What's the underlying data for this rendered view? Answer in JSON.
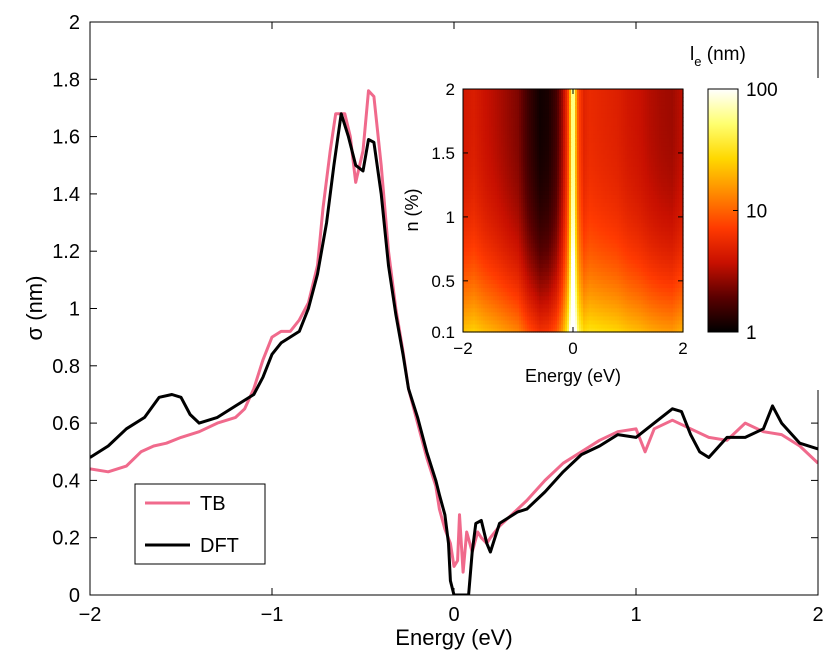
{
  "chart_data": [
    {
      "type": "line",
      "title": "",
      "xlabel": "Energy (eV)",
      "ylabel": "σ (nm)",
      "xlim": [
        -2,
        2
      ],
      "ylim": [
        0,
        2
      ],
      "xticks": [
        -2,
        -1,
        0,
        1,
        2
      ],
      "xtick_labels": [
        "−2",
        "−1",
        "0",
        "1",
        "2"
      ],
      "yticks": [
        0,
        0.2,
        0.4,
        0.6,
        0.8,
        1,
        1.2,
        1.4,
        1.6,
        1.8,
        2
      ],
      "ytick_labels": [
        "0",
        "0.2",
        "0.4",
        "0.6",
        "0.8",
        "1",
        "1.2",
        "1.4",
        "1.6",
        "1.8",
        "2"
      ],
      "grid": false,
      "legend": "bottom-left",
      "series": [
        {
          "name": "TB",
          "color": "#f06a8c",
          "points": [
            [
              -2.0,
              0.44
            ],
            [
              -1.9,
              0.43
            ],
            [
              -1.8,
              0.45
            ],
            [
              -1.72,
              0.5
            ],
            [
              -1.65,
              0.52
            ],
            [
              -1.58,
              0.53
            ],
            [
              -1.5,
              0.55
            ],
            [
              -1.4,
              0.57
            ],
            [
              -1.3,
              0.6
            ],
            [
              -1.2,
              0.62
            ],
            [
              -1.15,
              0.65
            ],
            [
              -1.1,
              0.72
            ],
            [
              -1.05,
              0.82
            ],
            [
              -1.0,
              0.9
            ],
            [
              -0.95,
              0.92
            ],
            [
              -0.9,
              0.92
            ],
            [
              -0.85,
              0.96
            ],
            [
              -0.8,
              1.02
            ],
            [
              -0.75,
              1.15
            ],
            [
              -0.72,
              1.35
            ],
            [
              -0.68,
              1.55
            ],
            [
              -0.65,
              1.68
            ],
            [
              -0.6,
              1.68
            ],
            [
              -0.57,
              1.6
            ],
            [
              -0.54,
              1.44
            ],
            [
              -0.5,
              1.55
            ],
            [
              -0.47,
              1.76
            ],
            [
              -0.44,
              1.74
            ],
            [
              -0.4,
              1.5
            ],
            [
              -0.36,
              1.2
            ],
            [
              -0.32,
              1.0
            ],
            [
              -0.28,
              0.85
            ],
            [
              -0.25,
              0.72
            ],
            [
              -0.2,
              0.6
            ],
            [
              -0.15,
              0.48
            ],
            [
              -0.1,
              0.38
            ],
            [
              -0.08,
              0.3
            ],
            [
              -0.05,
              0.23
            ],
            [
              -0.02,
              0.18
            ],
            [
              0.0,
              0.1
            ],
            [
              0.02,
              0.12
            ],
            [
              0.03,
              0.28
            ],
            [
              0.05,
              0.08
            ],
            [
              0.07,
              0.22
            ],
            [
              0.1,
              0.15
            ],
            [
              0.13,
              0.22
            ],
            [
              0.15,
              0.2
            ],
            [
              0.18,
              0.18
            ],
            [
              0.2,
              0.2
            ],
            [
              0.25,
              0.24
            ],
            [
              0.3,
              0.27
            ],
            [
              0.35,
              0.3
            ],
            [
              0.4,
              0.33
            ],
            [
              0.5,
              0.4
            ],
            [
              0.6,
              0.46
            ],
            [
              0.7,
              0.5
            ],
            [
              0.8,
              0.54
            ],
            [
              0.9,
              0.57
            ],
            [
              1.0,
              0.58
            ],
            [
              1.05,
              0.5
            ],
            [
              1.1,
              0.58
            ],
            [
              1.2,
              0.61
            ],
            [
              1.3,
              0.58
            ],
            [
              1.4,
              0.55
            ],
            [
              1.5,
              0.54
            ],
            [
              1.6,
              0.6
            ],
            [
              1.7,
              0.57
            ],
            [
              1.8,
              0.56
            ],
            [
              1.9,
              0.52
            ],
            [
              2.0,
              0.46
            ]
          ]
        },
        {
          "name": "DFT",
          "color": "#000000",
          "points": [
            [
              -2.0,
              0.48
            ],
            [
              -1.9,
              0.52
            ],
            [
              -1.8,
              0.58
            ],
            [
              -1.7,
              0.62
            ],
            [
              -1.62,
              0.69
            ],
            [
              -1.55,
              0.7
            ],
            [
              -1.5,
              0.69
            ],
            [
              -1.45,
              0.63
            ],
            [
              -1.4,
              0.6
            ],
            [
              -1.3,
              0.62
            ],
            [
              -1.2,
              0.66
            ],
            [
              -1.1,
              0.7
            ],
            [
              -1.05,
              0.76
            ],
            [
              -1.0,
              0.84
            ],
            [
              -0.95,
              0.88
            ],
            [
              -0.9,
              0.9
            ],
            [
              -0.85,
              0.92
            ],
            [
              -0.8,
              1.0
            ],
            [
              -0.75,
              1.12
            ],
            [
              -0.7,
              1.3
            ],
            [
              -0.66,
              1.5
            ],
            [
              -0.62,
              1.68
            ],
            [
              -0.58,
              1.6
            ],
            [
              -0.54,
              1.5
            ],
            [
              -0.5,
              1.48
            ],
            [
              -0.47,
              1.59
            ],
            [
              -0.44,
              1.58
            ],
            [
              -0.4,
              1.4
            ],
            [
              -0.36,
              1.15
            ],
            [
              -0.32,
              0.98
            ],
            [
              -0.28,
              0.84
            ],
            [
              -0.25,
              0.72
            ],
            [
              -0.2,
              0.62
            ],
            [
              -0.15,
              0.5
            ],
            [
              -0.1,
              0.4
            ],
            [
              -0.08,
              0.35
            ],
            [
              -0.05,
              0.28
            ],
            [
              -0.03,
              0.18
            ],
            [
              -0.02,
              0.05
            ],
            [
              0.0,
              0.0
            ],
            [
              0.05,
              0.0
            ],
            [
              0.08,
              0.0
            ],
            [
              0.1,
              0.15
            ],
            [
              0.12,
              0.25
            ],
            [
              0.15,
              0.26
            ],
            [
              0.18,
              0.18
            ],
            [
              0.2,
              0.15
            ],
            [
              0.25,
              0.25
            ],
            [
              0.3,
              0.27
            ],
            [
              0.35,
              0.29
            ],
            [
              0.4,
              0.3
            ],
            [
              0.5,
              0.36
            ],
            [
              0.6,
              0.43
            ],
            [
              0.7,
              0.49
            ],
            [
              0.8,
              0.52
            ],
            [
              0.9,
              0.56
            ],
            [
              1.0,
              0.55
            ],
            [
              1.1,
              0.6
            ],
            [
              1.2,
              0.65
            ],
            [
              1.25,
              0.64
            ],
            [
              1.3,
              0.56
            ],
            [
              1.35,
              0.5
            ],
            [
              1.4,
              0.48
            ],
            [
              1.5,
              0.55
            ],
            [
              1.6,
              0.55
            ],
            [
              1.7,
              0.58
            ],
            [
              1.75,
              0.66
            ],
            [
              1.8,
              0.6
            ],
            [
              1.9,
              0.53
            ],
            [
              2.0,
              0.51
            ]
          ]
        }
      ]
    },
    {
      "type": "heatmap",
      "title": "",
      "xlabel": "Energy (eV)",
      "ylabel": "n (%)",
      "xlim": [
        -2,
        2
      ],
      "ylim": [
        0.1,
        2
      ],
      "xticks": [
        -2,
        0,
        2
      ],
      "xtick_labels": [
        "−2",
        "0",
        "2"
      ],
      "yticks": [
        0.1,
        0.5,
        1,
        1.5,
        2
      ],
      "ytick_labels": [
        "0.1",
        "0.5",
        "1",
        "1.5",
        "2"
      ],
      "colorbar": {
        "label_main": "l",
        "label_sub": "e",
        "label_unit": " (nm)",
        "scale": "log",
        "range": [
          1,
          100
        ],
        "ticks": [
          1,
          10,
          100
        ],
        "tick_labels": [
          "1",
          "10",
          "100"
        ],
        "colors": [
          "#000000",
          "#5a0000",
          "#c81000",
          "#ff3a00",
          "#ff8a00",
          "#ffd800",
          "#ffff70",
          "#ffffff"
        ]
      },
      "energy_samples": [
        -2.0,
        -1.8,
        -1.6,
        -1.4,
        -1.2,
        -1.0,
        -0.8,
        -0.6,
        -0.45,
        -0.3,
        -0.2,
        -0.1,
        -0.05,
        0.0,
        0.05,
        0.1,
        0.2,
        0.3,
        0.5,
        0.8,
        1.0,
        1.2,
        1.4,
        1.6,
        1.8,
        2.0
      ],
      "log_le_at_n2": [
        0.62,
        0.66,
        0.58,
        0.52,
        0.45,
        0.38,
        0.18,
        0.05,
        0.08,
        0.22,
        0.45,
        0.8,
        1.3,
        2.0,
        1.3,
        0.9,
        0.7,
        0.75,
        0.72,
        0.68,
        0.62,
        0.58,
        0.52,
        0.48,
        0.46,
        0.55
      ],
      "low_n_boost": 0.75
    }
  ],
  "legend": {
    "entries": [
      {
        "name": "TB",
        "color": "#f06a8c"
      },
      {
        "name": "DFT",
        "color": "#000000"
      }
    ]
  }
}
